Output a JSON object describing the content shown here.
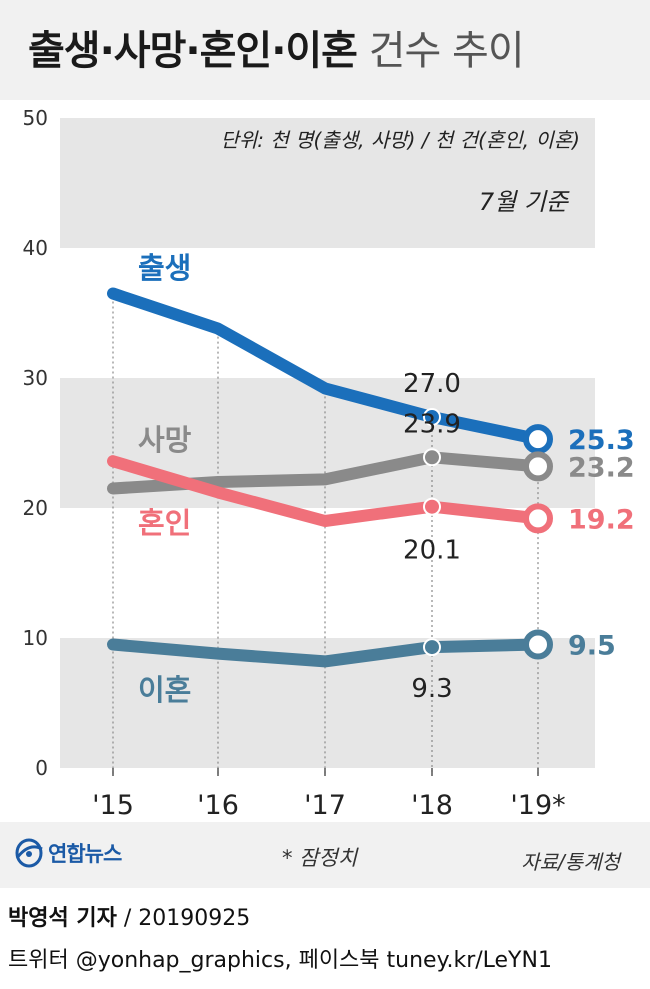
{
  "title": {
    "bold": "출생·사망·혼인·이혼",
    "light": "건수 추이"
  },
  "chart_data": {
    "type": "line",
    "title": "출생·사망·혼인·이혼 건수 추이",
    "unit_note": "단위: 천 명(출생, 사망) / 천 건(혼인, 이혼)",
    "basis_note": "7월 기준",
    "categories": [
      "'15",
      "'16",
      "'17",
      "'18",
      "'19*"
    ],
    "x": [
      2015,
      2016,
      2017,
      2018,
      2019
    ],
    "ylim": [
      0,
      50
    ],
    "yticks": [
      "0",
      "10",
      "20",
      "30",
      "40",
      "50"
    ],
    "series": [
      {
        "name": "출생",
        "color": "#1b6fbb",
        "values": [
          36.5,
          33.8,
          29.2,
          27.0,
          25.3
        ],
        "labels": [
          "",
          "",
          "",
          "27.0",
          "25.3"
        ]
      },
      {
        "name": "사망",
        "color": "#8a8a8a",
        "values": [
          21.5,
          22.0,
          22.2,
          23.9,
          23.2
        ],
        "labels": [
          "",
          "",
          "",
          "23.9",
          "23.2"
        ]
      },
      {
        "name": "혼인",
        "color": "#f0707a",
        "values": [
          23.6,
          21.2,
          19.0,
          20.1,
          19.2
        ],
        "labels": [
          "",
          "",
          "",
          "20.1",
          "19.2"
        ]
      },
      {
        "name": "이혼",
        "color": "#4a7d99",
        "values": [
          9.5,
          8.8,
          8.2,
          9.3,
          9.5
        ],
        "labels": [
          "",
          "",
          "",
          "9.3",
          "9.5"
        ]
      }
    ]
  },
  "footer": {
    "logo": "연합뉴스",
    "note": "* 잠정치",
    "source": "자료/통계청",
    "credit_name": "박영석 기자",
    "credit_date": "/  20190925",
    "credit_line2": "트위터 @yonhap_graphics, 페이스북 tuney.kr/LeYN1"
  }
}
